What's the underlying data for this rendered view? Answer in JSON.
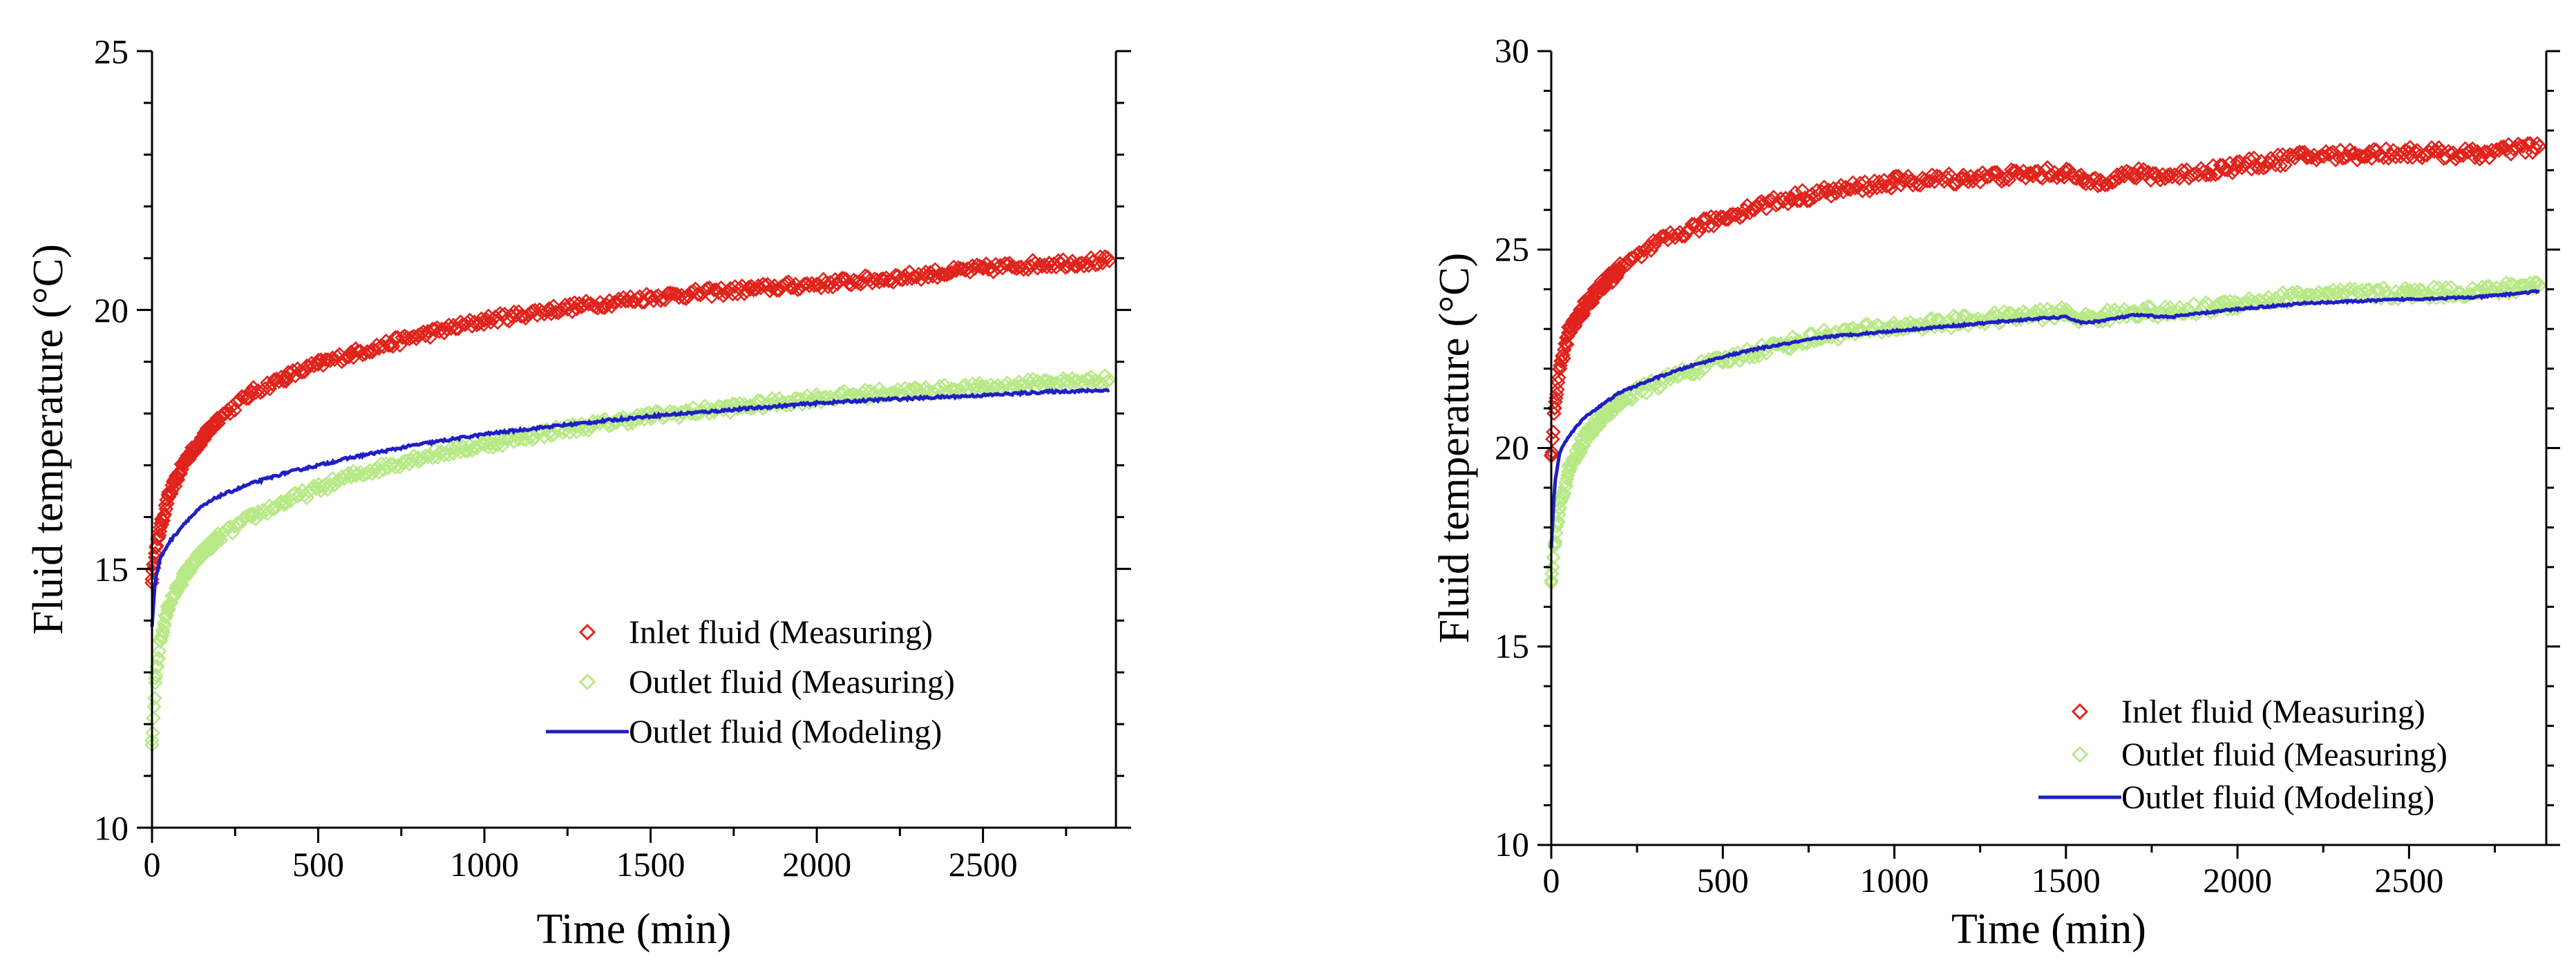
{
  "colors": {
    "inlet": "#e0231c",
    "outlet_measuring": "#b8e986",
    "outlet_modeling": "#1f1fc4",
    "axis": "#000000"
  },
  "chart_data": [
    {
      "type": "scatter",
      "title": "",
      "xlabel": "Time (min)",
      "ylabel": "Fluid temperature (°C)",
      "xlim": [
        0,
        2900
      ],
      "ylim": [
        10,
        25
      ],
      "xticks": [
        0,
        500,
        1000,
        1500,
        2000,
        2500
      ],
      "xtick_labels": [
        "0",
        "500",
        "1000",
        "1500",
        "2000",
        "2500"
      ],
      "yticks": [
        10,
        15,
        20,
        25
      ],
      "ytick_labels": [
        "10",
        "15",
        "20",
        "25"
      ],
      "legend_position": "bottom-right",
      "series": [
        {
          "name": "Inlet fluid (Measuring)",
          "kind": "marker-diamond",
          "color_key": "inlet",
          "x": [
            0,
            10,
            25,
            50,
            100,
            150,
            200,
            300,
            400,
            500,
            600,
            800,
            1000,
            1200,
            1500,
            1800,
            2000,
            2200,
            2500,
            2700,
            2880
          ],
          "y": [
            14.8,
            15.3,
            15.8,
            16.4,
            17.1,
            17.5,
            17.9,
            18.4,
            18.7,
            18.95,
            19.15,
            19.5,
            19.8,
            20.0,
            20.25,
            20.4,
            20.5,
            20.6,
            20.8,
            20.9,
            20.95
          ]
        },
        {
          "name": "Outlet fluid (Measuring)",
          "kind": "marker-diamond",
          "color_key": "outlet_measuring",
          "x": [
            0,
            10,
            25,
            50,
            100,
            150,
            200,
            300,
            400,
            500,
            600,
            800,
            1000,
            1200,
            1500,
            1800,
            2000,
            2200,
            2500,
            2700,
            2880
          ],
          "y": [
            11.6,
            12.8,
            13.6,
            14.3,
            14.9,
            15.3,
            15.6,
            16.0,
            16.3,
            16.55,
            16.8,
            17.15,
            17.4,
            17.65,
            17.95,
            18.15,
            18.3,
            18.4,
            18.5,
            18.6,
            18.65
          ]
        },
        {
          "name": "Outlet fluid (Modeling)",
          "kind": "line",
          "color_key": "outlet_modeling",
          "x": [
            0,
            10,
            25,
            50,
            100,
            150,
            200,
            300,
            400,
            500,
            600,
            800,
            1000,
            1200,
            1500,
            1800,
            2000,
            2200,
            2500,
            2700,
            2880
          ],
          "y": [
            13.9,
            14.8,
            15.2,
            15.5,
            15.9,
            16.2,
            16.4,
            16.65,
            16.85,
            17.0,
            17.15,
            17.4,
            17.6,
            17.75,
            17.95,
            18.1,
            18.2,
            18.27,
            18.35,
            18.42,
            18.45
          ]
        }
      ]
    },
    {
      "type": "scatter",
      "title": "",
      "xlabel": "Time (min)",
      "ylabel": "Fluid temperature (°C)",
      "xlim": [
        0,
        2900
      ],
      "ylim": [
        10,
        30
      ],
      "xticks": [
        0,
        500,
        1000,
        1500,
        2000,
        2500
      ],
      "xtick_labels": [
        "0",
        "500",
        "1000",
        "1500",
        "2000",
        "2500"
      ],
      "yticks": [
        10,
        15,
        20,
        25,
        30
      ],
      "ytick_labels": [
        "10",
        "15",
        "20",
        "25",
        "30"
      ],
      "legend_position": "bottom-right",
      "series": [
        {
          "name": "Inlet fluid (Measuring)",
          "kind": "marker-diamond",
          "color_key": "inlet",
          "x": [
            0,
            10,
            25,
            50,
            100,
            150,
            200,
            300,
            400,
            500,
            600,
            700,
            800,
            1000,
            1200,
            1400,
            1500,
            1550,
            1600,
            1700,
            1800,
            2000,
            2200,
            2500,
            2700,
            2880
          ],
          "y": [
            19.8,
            21.0,
            22.0,
            22.9,
            23.6,
            24.1,
            24.5,
            25.1,
            25.5,
            25.8,
            26.1,
            26.3,
            26.45,
            26.7,
            26.8,
            26.9,
            26.95,
            26.7,
            26.75,
            26.9,
            26.85,
            27.1,
            27.35,
            27.45,
            27.4,
            27.6
          ]
        },
        {
          "name": "Outlet fluid (Measuring)",
          "kind": "marker-diamond",
          "color_key": "outlet_measuring",
          "x": [
            0,
            10,
            25,
            50,
            100,
            150,
            200,
            300,
            400,
            500,
            600,
            700,
            800,
            1000,
            1200,
            1400,
            1500,
            1550,
            1600,
            1700,
            1800,
            2000,
            2200,
            2500,
            2700,
            2880
          ],
          "y": [
            16.6,
            17.6,
            18.5,
            19.4,
            20.3,
            20.8,
            21.2,
            21.6,
            21.95,
            22.2,
            22.45,
            22.65,
            22.85,
            23.05,
            23.2,
            23.35,
            23.4,
            23.25,
            23.3,
            23.45,
            23.4,
            23.65,
            23.85,
            23.9,
            23.95,
            24.1
          ]
        },
        {
          "name": "Outlet fluid (Modeling)",
          "kind": "line",
          "color_key": "outlet_modeling",
          "x": [
            0,
            10,
            25,
            50,
            100,
            150,
            200,
            300,
            400,
            500,
            600,
            700,
            800,
            1000,
            1200,
            1400,
            1500,
            1550,
            1600,
            1700,
            1800,
            2000,
            2200,
            2500,
            2700,
            2880
          ],
          "y": [
            17.5,
            19.1,
            19.9,
            20.3,
            20.8,
            21.1,
            21.4,
            21.75,
            22.05,
            22.3,
            22.5,
            22.65,
            22.8,
            22.95,
            23.1,
            23.25,
            23.3,
            23.15,
            23.2,
            23.35,
            23.3,
            23.5,
            23.65,
            23.75,
            23.8,
            23.95
          ]
        }
      ]
    }
  ]
}
